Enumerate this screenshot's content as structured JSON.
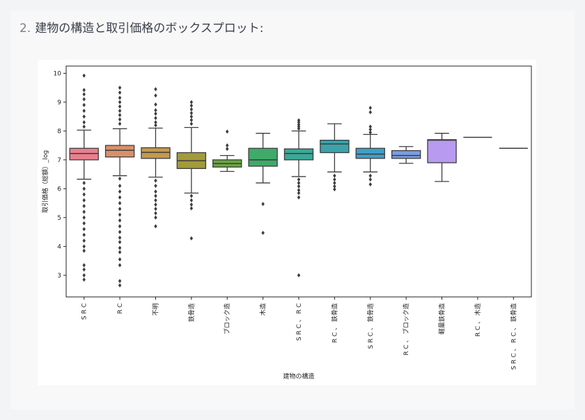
{
  "heading": {
    "number": "2.",
    "text": "建物の構造と取引価格のボックスプロット:"
  },
  "chart_data": {
    "type": "box",
    "xlabel": "建物の構造",
    "ylabel": "取引価格（総額）_log",
    "ylim": [
      2.25,
      10.25
    ],
    "yticks": [
      3,
      4,
      5,
      6,
      7,
      8,
      9,
      10
    ],
    "categories": [
      "S R C",
      "R C",
      "不明",
      "鉄骨造",
      "ブロック造",
      "木造",
      "S R C 、 R C",
      "R C 、 鉄骨造",
      "S R C 、 鉄骨造",
      "R C 、 ブロック造",
      "軽量鉄骨造",
      "R C 、 木造",
      "S R C 、 R C 、 鉄骨造"
    ],
    "series": [
      {
        "category": "S R C",
        "color": "#e8808e",
        "whisker_low": 6.33,
        "q1": 7.0,
        "median": 7.22,
        "q3": 7.4,
        "whisker_high": 8.03,
        "outliers": [
          9.92,
          9.42,
          9.27,
          9.1,
          8.9,
          8.7,
          8.5,
          8.3,
          8.15,
          6.2,
          6.0,
          5.8,
          5.6,
          5.4,
          5.2,
          5.0,
          4.8,
          4.6,
          4.4,
          4.2,
          4.0,
          3.85,
          3.35,
          3.2,
          3.0,
          2.85
        ]
      },
      {
        "category": "R C",
        "color": "#d9906a",
        "whisker_low": 6.45,
        "q1": 7.1,
        "median": 7.33,
        "q3": 7.5,
        "whisker_high": 8.08,
        "outliers": [
          9.5,
          9.33,
          9.15,
          9.0,
          8.85,
          8.7,
          8.55,
          8.4,
          8.25,
          6.35,
          6.1,
          5.9,
          5.7,
          5.5,
          5.3,
          5.1,
          4.9,
          4.7,
          4.5,
          4.3,
          4.15,
          3.95,
          3.8,
          3.55,
          3.35,
          2.8,
          2.65
        ]
      },
      {
        "category": "不明",
        "color": "#c4994e",
        "whisker_low": 6.4,
        "q1": 7.05,
        "median": 7.26,
        "q3": 7.42,
        "whisker_high": 8.1,
        "outliers": [
          9.45,
          9.23,
          8.92,
          8.72,
          8.6,
          8.45,
          8.3,
          8.2,
          6.28,
          6.1,
          5.9,
          5.75,
          5.6,
          5.45,
          5.3,
          5.15,
          5.0,
          4.7
        ]
      },
      {
        "category": "鉄骨造",
        "color": "#a39a3a",
        "whisker_low": 5.85,
        "q1": 6.7,
        "median": 6.97,
        "q3": 7.25,
        "whisker_high": 8.12,
        "outliers": [
          9.0,
          8.88,
          8.75,
          8.62,
          8.5,
          8.38,
          8.25,
          5.75,
          5.6,
          5.45,
          5.32,
          4.28
        ]
      },
      {
        "category": "ブロック造",
        "color": "#6aa543",
        "whisker_low": 6.6,
        "q1": 6.75,
        "median": 6.87,
        "q3": 7.0,
        "whisker_high": 7.15,
        "outliers": [
          7.98,
          7.5,
          7.38
        ]
      },
      {
        "category": "木造",
        "color": "#3faa6a",
        "whisker_low": 6.2,
        "q1": 6.78,
        "median": 7.0,
        "q3": 7.4,
        "whisker_high": 7.92,
        "outliers": [
          5.47,
          4.47
        ]
      },
      {
        "category": "S R C 、 R C",
        "color": "#3ca896",
        "whisker_low": 6.42,
        "q1": 7.0,
        "median": 7.22,
        "q3": 7.38,
        "whisker_high": 8.0,
        "outliers": [
          8.37,
          8.3,
          8.22,
          8.15,
          8.08,
          6.32,
          6.2,
          6.08,
          5.95,
          5.85,
          5.7,
          3.0
        ]
      },
      {
        "category": "R C 、 鉄骨造",
        "color": "#3ba3ad",
        "whisker_low": 6.58,
        "q1": 7.25,
        "median": 7.55,
        "q3": 7.68,
        "whisker_high": 8.25,
        "outliers": [
          6.45,
          6.32,
          6.2,
          6.08,
          5.98
        ]
      },
      {
        "category": "S R C 、 鉄骨造",
        "color": "#3f9fca",
        "whisker_low": 6.58,
        "q1": 7.05,
        "median": 7.2,
        "q3": 7.4,
        "whisker_high": 7.88,
        "outliers": [
          8.8,
          8.65,
          8.15,
          8.05,
          7.95,
          6.45,
          6.32,
          6.15
        ]
      },
      {
        "category": "R C 、 ブロック造",
        "color": "#7c9ce6",
        "whisker_low": 6.88,
        "q1": 7.05,
        "median": 7.15,
        "q3": 7.32,
        "whisker_high": 7.46,
        "outliers": []
      },
      {
        "category": "軽量鉄骨造",
        "color": "#b89af0",
        "whisker_low": 6.25,
        "q1": 6.9,
        "median": 7.68,
        "q3": 7.7,
        "whisker_high": 7.92,
        "outliers": []
      },
      {
        "category": "R C 、 木造",
        "color": "#e08fe0",
        "whisker_low": 7.78,
        "q1": 7.78,
        "median": 7.78,
        "q3": 7.78,
        "whisker_high": 7.78,
        "outliers": []
      },
      {
        "category": "S R C 、 R C 、 鉄骨造",
        "color": "#ea88c0",
        "whisker_low": 7.4,
        "q1": 7.4,
        "median": 7.4,
        "q3": 7.4,
        "whisker_high": 7.4,
        "outliers": []
      }
    ]
  }
}
